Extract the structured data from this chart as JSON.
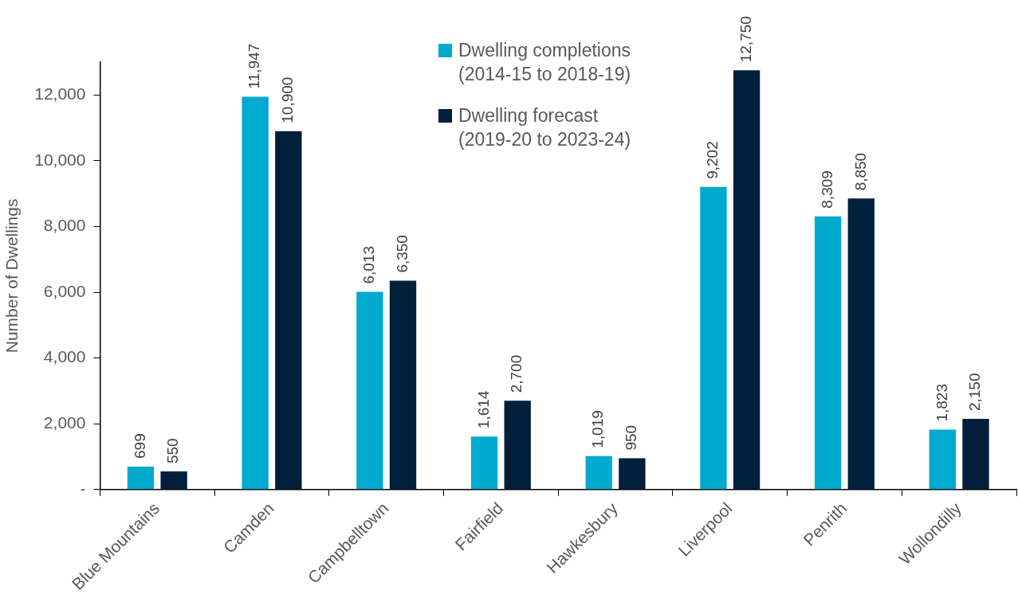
{
  "chart_data": {
    "type": "bar",
    "ylabel": "Number of Dwellings",
    "categories": [
      "Blue Mountains",
      "Camden",
      "Campbelltown",
      "Fairfield",
      "Hawkesbury",
      "Liverpool",
      "Penrith",
      "Wollondilly"
    ],
    "series": [
      {
        "name": "Dwelling completions (2014-15 to 2018-19)",
        "color": "#00a9ce",
        "values": [
          699,
          11947,
          6013,
          1614,
          1019,
          9202,
          8309,
          1823
        ],
        "value_labels": [
          "699",
          "11,947",
          "6,013",
          "1,614",
          "1,019",
          "9,202",
          "8,309",
          "1,823"
        ]
      },
      {
        "name": "Dwelling forecast (2019-20 to 2023-24)",
        "color": "#001f3a",
        "values": [
          550,
          10900,
          6350,
          2700,
          950,
          12750,
          8850,
          2150
        ],
        "value_labels": [
          "550",
          "10,900",
          "6,350",
          "2,700",
          "950",
          "12,750",
          "8,850",
          "2,150"
        ]
      }
    ],
    "ylim": [
      0,
      13000
    ],
    "yticks": [
      {
        "value": 0,
        "label": "-"
      },
      {
        "value": 2000,
        "label": "2,000"
      },
      {
        "value": 4000,
        "label": "4,000"
      },
      {
        "value": 6000,
        "label": "6,000"
      },
      {
        "value": 8000,
        "label": "8,000"
      },
      {
        "value": 10000,
        "label": "10,000"
      },
      {
        "value": 12000,
        "label": "12,000"
      }
    ],
    "grid": false,
    "legend": "top"
  }
}
